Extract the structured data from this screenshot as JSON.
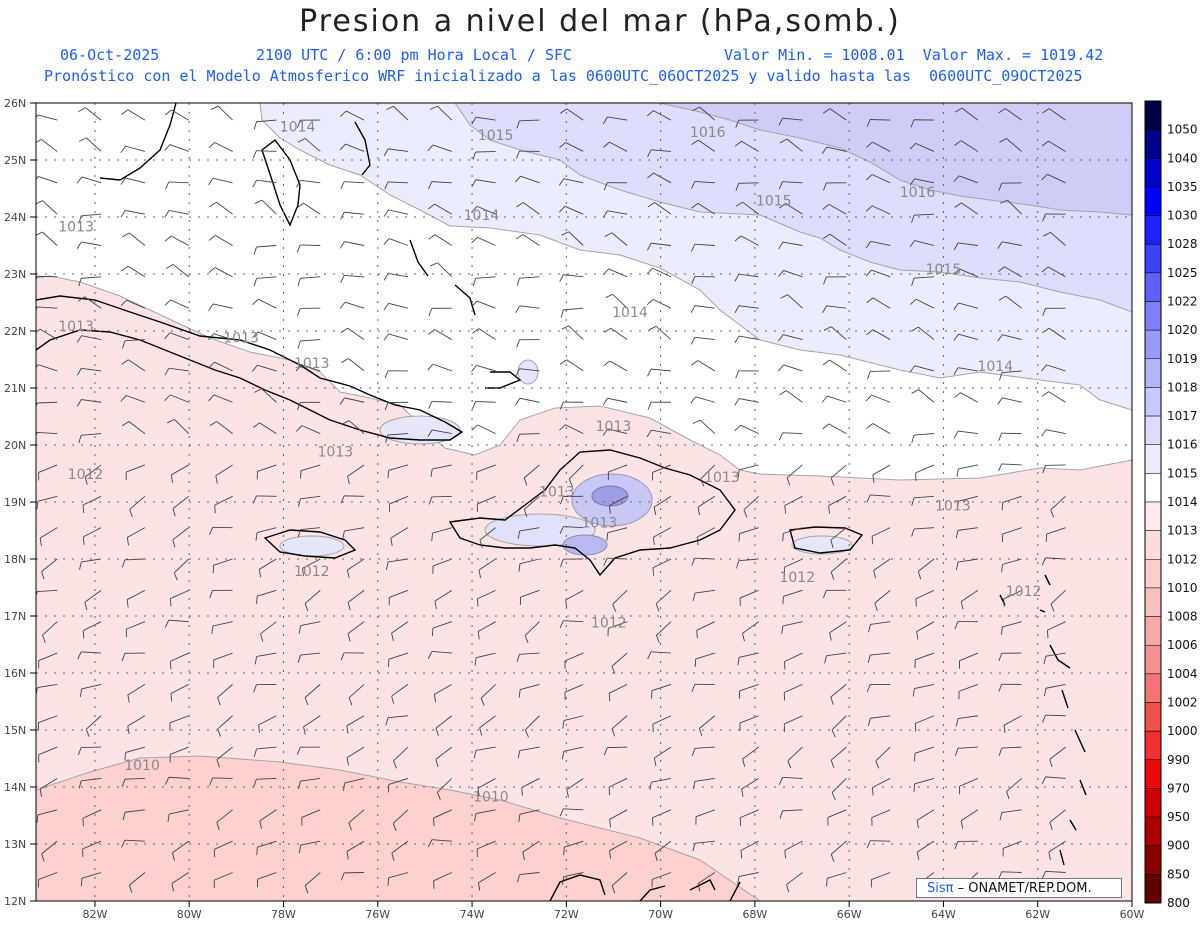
{
  "header": {
    "title": "Presion a nivel del mar (hPa,somb.)",
    "date": "06-Oct-2025",
    "valid_time": "2100 UTC / 6:00 pm Hora Local / SFC",
    "minmax": "Valor Min. = 1008.01  Valor Max. = 1019.42",
    "model_line": "Pronóstico con el Modelo Atmosferico WRF inicializado a las 0600UTC_06OCT2025 y valido hasta las  0600UTC_09OCT2025"
  },
  "map": {
    "lat_labels": [
      "26N",
      "25N",
      "24N",
      "23N",
      "22N",
      "21N",
      "20N",
      "19N",
      "18N",
      "17N",
      "16N",
      "15N",
      "14N",
      "13N",
      "12N"
    ],
    "lon_labels": [
      "82W",
      "80W",
      "78W",
      "76W",
      "74W",
      "72W",
      "70W",
      "68W",
      "66W",
      "64W",
      "62W",
      "60W"
    ],
    "contours": [
      {
        "label": "1016",
        "lat": 25.4,
        "lon": -69.0
      },
      {
        "label": "1016",
        "lat": 24.35,
        "lon": -64.55
      },
      {
        "label": "1015",
        "lat": 25.35,
        "lon": -73.5
      },
      {
        "label": "1015",
        "lat": 24.2,
        "lon": -67.6
      },
      {
        "label": "1015",
        "lat": 23.0,
        "lon": -64.0
      },
      {
        "label": "1014",
        "lat": 25.5,
        "lon": -77.7
      },
      {
        "label": "1014",
        "lat": 23.95,
        "lon": -73.8
      },
      {
        "label": "1014",
        "lat": 22.25,
        "lon": -70.65
      },
      {
        "label": "1014",
        "lat": 21.3,
        "lon": -62.9
      },
      {
        "label": "1013",
        "lat": 23.75,
        "lon": -82.4
      },
      {
        "label": "1013",
        "lat": 22.0,
        "lon": -82.4
      },
      {
        "label": "1013",
        "lat": 21.8,
        "lon": -78.9
      },
      {
        "label": "1013",
        "lat": 21.35,
        "lon": -77.4
      },
      {
        "label": "1013",
        "lat": 20.25,
        "lon": -71.0
      },
      {
        "label": "1013",
        "lat": 19.8,
        "lon": -76.9
      },
      {
        "label": "1013",
        "lat": 19.1,
        "lon": -72.2
      },
      {
        "label": "1013",
        "lat": 18.55,
        "lon": -71.3
      },
      {
        "label": "1013",
        "lat": 19.35,
        "lon": -68.7
      },
      {
        "label": "1013",
        "lat": 18.85,
        "lon": -63.8
      },
      {
        "label": "1012",
        "lat": 19.4,
        "lon": -82.2
      },
      {
        "label": "1012",
        "lat": 17.7,
        "lon": -77.4
      },
      {
        "label": "1012",
        "lat": 17.6,
        "lon": -67.1
      },
      {
        "label": "1012",
        "lat": 17.35,
        "lon": -62.3
      },
      {
        "label": "1012",
        "lat": 16.8,
        "lon": -71.1
      },
      {
        "label": "1010",
        "lat": 14.3,
        "lon": -81.0
      },
      {
        "label": "1010",
        "lat": 13.75,
        "lon": -73.6
      }
    ],
    "colors": {
      "1010_1012": "#fcd0cf",
      "1012_1013": "#fde4e4",
      "1013_1014": "#ffffff",
      "1014_1015": "#ececff",
      "1015_1016": "#dcdcfb",
      "1016_1017": "#cdcdf7",
      "contour": "#a6a6a6",
      "coast": "#000000",
      "wind_barb": "#444444",
      "grid": "#666666"
    }
  },
  "colorbar": {
    "levels": [
      "1050",
      "1040",
      "1035",
      "1030",
      "1028",
      "1025",
      "1022",
      "1020",
      "1019",
      "1018",
      "1017",
      "1016",
      "1015",
      "1014",
      "1013",
      "1012",
      "1010",
      "1008",
      "1006",
      "1004",
      "1002",
      "1000",
      "990",
      "970",
      "950",
      "900",
      "850",
      "800"
    ],
    "colors": [
      "#000040",
      "#00008c",
      "#0000c8",
      "#0000ff",
      "#2020ff",
      "#4040ff",
      "#6060ff",
      "#7e7eff",
      "#9a9afb",
      "#b4b4fa",
      "#c8c8fb",
      "#dcdcfc",
      "#ececff",
      "#ffffff",
      "#fdebeb",
      "#fcdcdc",
      "#fbcece",
      "#f9bfbf",
      "#f7aaaa",
      "#f59090",
      "#f27373",
      "#f05050",
      "#ee3030",
      "#ec0a0a",
      "#d00000",
      "#ae0000",
      "#8a0000",
      "#600000"
    ]
  },
  "credit": {
    "brand": "Sisπ",
    "org": " – ONAMET/REP.DOM."
  }
}
